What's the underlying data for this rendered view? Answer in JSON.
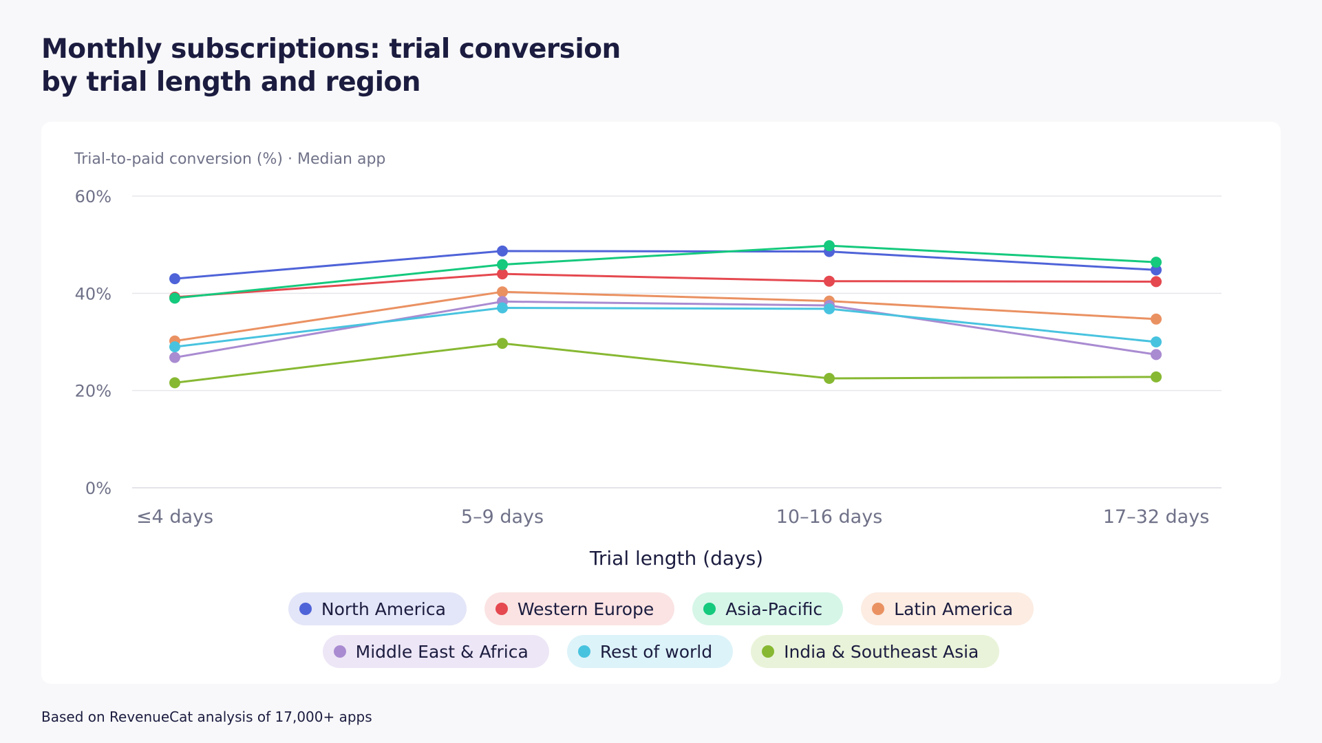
{
  "title_lines": [
    "Monthly subscriptions: trial conversion",
    "by trial length and region"
  ],
  "footnote": "Based on RevenueCat analysis of 17,000+ apps",
  "chart_data": {
    "type": "line",
    "subtitle": "Trial-to-paid conversion (%) · Median app",
    "xlabel": "Trial length (days)",
    "categories": [
      "≤4 days",
      "5–9 days",
      "10–16 days",
      "17–32 days"
    ],
    "ylim": [
      0,
      60
    ],
    "yticks": [
      0,
      20,
      40,
      60
    ],
    "ytick_labels": [
      "0%",
      "20%",
      "40%",
      "60%"
    ],
    "grid": true,
    "legend_placement": "bottom-center",
    "series": [
      {
        "name": "North America",
        "color": "#4f63d8",
        "values": [
          43.0,
          48.7,
          48.6,
          44.8
        ]
      },
      {
        "name": "Western Europe",
        "color": "#e5484f",
        "values": [
          39.2,
          44.0,
          42.5,
          42.4
        ]
      },
      {
        "name": "Asia-Pacific",
        "color": "#15c97d",
        "values": [
          39.0,
          45.9,
          49.8,
          46.4
        ]
      },
      {
        "name": "Latin America",
        "color": "#ea9162",
        "values": [
          30.2,
          40.3,
          38.4,
          34.7
        ]
      },
      {
        "name": "Middle East & Africa",
        "color": "#a98bd1",
        "values": [
          26.8,
          38.3,
          37.5,
          27.4
        ]
      },
      {
        "name": "Rest of world",
        "color": "#48c3df",
        "values": [
          29.0,
          37.0,
          36.8,
          30.0
        ]
      },
      {
        "name": "India & Southeast Asia",
        "color": "#87b832",
        "values": [
          21.6,
          29.7,
          22.5,
          22.8
        ]
      }
    ]
  },
  "legend": {
    "rows": [
      [
        {
          "label": "North America",
          "color": "#4f63d8",
          "bg": "#e3e5f8"
        },
        {
          "label": "Western Europe",
          "color": "#e5484f",
          "bg": "#fbe3e3"
        },
        {
          "label": "Asia-Pacific",
          "color": "#15c97d",
          "bg": "#d6f6e8"
        },
        {
          "label": "Latin America",
          "color": "#ea9162",
          "bg": "#fcece2"
        }
      ],
      [
        {
          "label": "Middle East & Africa",
          "color": "#a98bd1",
          "bg": "#ede6f6"
        },
        {
          "label": "Rest of world",
          "color": "#48c3df",
          "bg": "#dcf3f9"
        },
        {
          "label": "India & Southeast Asia",
          "color": "#87b832",
          "bg": "#e9f3d9"
        }
      ]
    ]
  }
}
